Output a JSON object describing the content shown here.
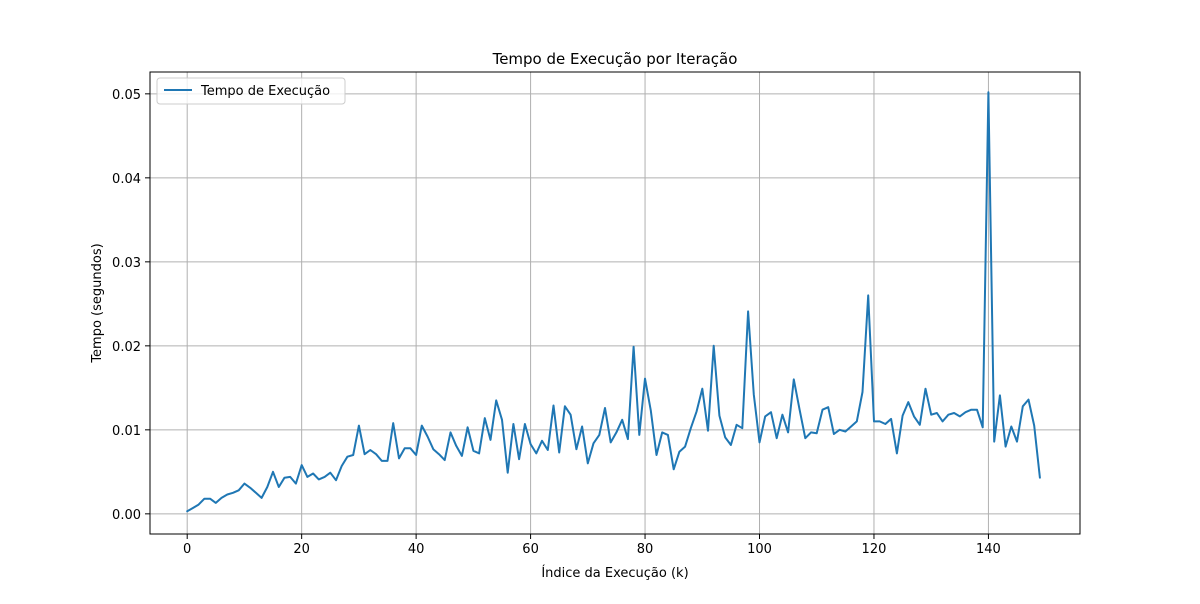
{
  "chart_data": {
    "type": "line",
    "title": "Tempo de Execução por Iteração",
    "xlabel": "Índice da Execução (k)",
    "ylabel": "Tempo (segundos)",
    "xlim": [
      -6.5,
      156
    ],
    "ylim": [
      -0.0024,
      0.0526
    ],
    "xticks": [
      0,
      20,
      40,
      60,
      80,
      100,
      120,
      140
    ],
    "yticks": [
      0.0,
      0.01,
      0.02,
      0.03,
      0.04,
      0.05
    ],
    "xtick_labels": [
      "0",
      "20",
      "40",
      "60",
      "80",
      "100",
      "120",
      "140"
    ],
    "ytick_labels": [
      "0.00",
      "0.01",
      "0.02",
      "0.03",
      "0.04",
      "0.05"
    ],
    "grid": true,
    "legend": {
      "placement": "upper-left",
      "entries": [
        "Tempo de Execução"
      ]
    },
    "series": [
      {
        "name": "Tempo de Execução",
        "color": "#1f77b4",
        "x": [
          0,
          1,
          2,
          3,
          4,
          5,
          6,
          7,
          8,
          9,
          10,
          11,
          12,
          13,
          14,
          15,
          16,
          17,
          18,
          19,
          20,
          21,
          22,
          23,
          24,
          25,
          26,
          27,
          28,
          29,
          30,
          31,
          32,
          33,
          34,
          35,
          36,
          37,
          38,
          39,
          40,
          41,
          42,
          43,
          44,
          45,
          46,
          47,
          48,
          49,
          50,
          51,
          52,
          53,
          54,
          55,
          56,
          57,
          58,
          59,
          60,
          61,
          62,
          63,
          64,
          65,
          66,
          67,
          68,
          69,
          70,
          71,
          72,
          73,
          74,
          75,
          76,
          77,
          78,
          79,
          80,
          81,
          82,
          83,
          84,
          85,
          86,
          87,
          88,
          89,
          90,
          91,
          92,
          93,
          94,
          95,
          96,
          97,
          98,
          99,
          100,
          101,
          102,
          103,
          104,
          105,
          106,
          107,
          108,
          109,
          110,
          111,
          112,
          113,
          114,
          115,
          116,
          117,
          118,
          119,
          120,
          121,
          122,
          123,
          124,
          125,
          126,
          127,
          128,
          129,
          130,
          131,
          132,
          133,
          134,
          135,
          136,
          137,
          138,
          139,
          140,
          141,
          142,
          143,
          144,
          145,
          146,
          147,
          148,
          149
        ],
        "values": [
          0.0003,
          0.0007,
          0.0011,
          0.0018,
          0.0018,
          0.0013,
          0.0019,
          0.0023,
          0.0025,
          0.0028,
          0.0036,
          0.0031,
          0.0025,
          0.0019,
          0.0032,
          0.005,
          0.0032,
          0.0043,
          0.0044,
          0.0036,
          0.0058,
          0.0044,
          0.0048,
          0.0041,
          0.0044,
          0.0049,
          0.004,
          0.0057,
          0.0068,
          0.007,
          0.0105,
          0.0071,
          0.0076,
          0.0071,
          0.0063,
          0.0063,
          0.0108,
          0.0066,
          0.0078,
          0.0078,
          0.007,
          0.0105,
          0.0092,
          0.0077,
          0.0071,
          0.0064,
          0.0097,
          0.0081,
          0.0069,
          0.0103,
          0.0075,
          0.0072,
          0.0114,
          0.0088,
          0.0135,
          0.0112,
          0.0049,
          0.0107,
          0.0065,
          0.0107,
          0.0083,
          0.0072,
          0.0087,
          0.0076,
          0.0129,
          0.0073,
          0.0128,
          0.0118,
          0.0077,
          0.0104,
          0.006,
          0.0084,
          0.0094,
          0.0126,
          0.0085,
          0.0097,
          0.0112,
          0.0089,
          0.0199,
          0.0094,
          0.0161,
          0.0123,
          0.007,
          0.0097,
          0.0094,
          0.0053,
          0.0074,
          0.008,
          0.0102,
          0.0122,
          0.0149,
          0.0099,
          0.02,
          0.0117,
          0.0091,
          0.0082,
          0.0106,
          0.0102,
          0.0241,
          0.0142,
          0.0085,
          0.0116,
          0.0121,
          0.009,
          0.0118,
          0.0097,
          0.016,
          0.0124,
          0.009,
          0.0097,
          0.0096,
          0.0124,
          0.0127,
          0.0095,
          0.01,
          0.0098,
          0.0104,
          0.011,
          0.0145,
          0.026,
          0.011,
          0.011,
          0.0107,
          0.0113,
          0.0072,
          0.0117,
          0.0133,
          0.0116,
          0.0106,
          0.0149,
          0.0118,
          0.012,
          0.011,
          0.0118,
          0.012,
          0.0116,
          0.0121,
          0.0124,
          0.0124,
          0.0103,
          0.0502,
          0.0086,
          0.0141,
          0.008,
          0.0104,
          0.0086,
          0.0128,
          0.0136,
          0.0105,
          0.0043
        ]
      }
    ]
  }
}
